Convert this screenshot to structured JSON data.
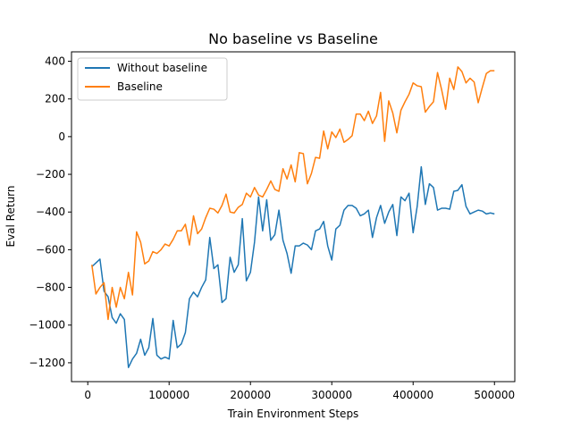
{
  "chart_data": {
    "type": "line",
    "title": "No baseline vs Baseline",
    "xlabel": "Train Environment Steps",
    "ylabel": "Eval Return",
    "xlim": [
      -20000,
      525000
    ],
    "ylim": [
      -1300,
      450
    ],
    "xticks": [
      0,
      100000,
      200000,
      300000,
      400000,
      500000
    ],
    "xtick_labels": [
      "0",
      "100000",
      "200000",
      "300000",
      "400000",
      "500000"
    ],
    "yticks": [
      -1200,
      -1000,
      -800,
      -600,
      -400,
      -200,
      0,
      200,
      400
    ],
    "ytick_labels": [
      "−1200",
      "−1000",
      "−800",
      "−600",
      "−400",
      "−200",
      "0",
      "200",
      "400"
    ],
    "grid": false,
    "legend": "top-left",
    "series": [
      {
        "name": "Without baseline",
        "color": "#1f77b4",
        "x": [
          5000,
          10000,
          15000,
          20000,
          25000,
          30000,
          35000,
          40000,
          45000,
          50000,
          55000,
          60000,
          65000,
          70000,
          75000,
          80000,
          85000,
          90000,
          95000,
          100000,
          105000,
          110000,
          115000,
          120000,
          125000,
          130000,
          135000,
          140000,
          145000,
          150000,
          155000,
          160000,
          165000,
          170000,
          175000,
          180000,
          185000,
          190000,
          195000,
          200000,
          205000,
          210000,
          215000,
          220000,
          225000,
          230000,
          235000,
          240000,
          245000,
          250000,
          255000,
          260000,
          265000,
          270000,
          275000,
          280000,
          285000,
          290000,
          295000,
          300000,
          305000,
          310000,
          315000,
          320000,
          325000,
          330000,
          335000,
          340000,
          345000,
          350000,
          355000,
          360000,
          365000,
          370000,
          375000,
          380000,
          385000,
          390000,
          395000,
          400000,
          405000,
          410000,
          415000,
          420000,
          425000,
          430000,
          435000,
          440000,
          445000,
          450000,
          455000,
          460000,
          465000,
          470000,
          475000,
          480000,
          485000,
          490000,
          495000,
          500000
        ],
        "y": [
          -690,
          -670,
          -650,
          -820,
          -850,
          -960,
          -990,
          -940,
          -970,
          -1225,
          -1180,
          -1150,
          -1075,
          -1160,
          -1120,
          -965,
          -1160,
          -1180,
          -1170,
          -1180,
          -975,
          -1120,
          -1100,
          -1040,
          -860,
          -825,
          -850,
          -800,
          -760,
          -535,
          -700,
          -680,
          -880,
          -860,
          -640,
          -720,
          -680,
          -435,
          -765,
          -720,
          -560,
          -320,
          -500,
          -335,
          -550,
          -520,
          -390,
          -550,
          -620,
          -725,
          -580,
          -580,
          -565,
          -575,
          -600,
          -500,
          -490,
          -450,
          -580,
          -655,
          -490,
          -470,
          -390,
          -365,
          -365,
          -380,
          -420,
          -410,
          -390,
          -535,
          -430,
          -365,
          -460,
          -400,
          -360,
          -525,
          -320,
          -340,
          -300,
          -510,
          -370,
          -160,
          -360,
          -250,
          -270,
          -390,
          -380,
          -380,
          -385,
          -290,
          -285,
          -255,
          -370,
          -410,
          -400,
          -390,
          -395,
          -410,
          -405,
          -410
        ]
      },
      {
        "name": "Baseline",
        "color": "#ff7f0e",
        "x": [
          5000,
          10000,
          15000,
          20000,
          25000,
          30000,
          35000,
          40000,
          45000,
          50000,
          55000,
          60000,
          65000,
          70000,
          75000,
          80000,
          85000,
          90000,
          95000,
          100000,
          105000,
          110000,
          115000,
          120000,
          125000,
          130000,
          135000,
          140000,
          145000,
          150000,
          155000,
          160000,
          165000,
          170000,
          175000,
          180000,
          185000,
          190000,
          195000,
          200000,
          205000,
          210000,
          215000,
          220000,
          225000,
          230000,
          235000,
          240000,
          245000,
          250000,
          255000,
          260000,
          265000,
          270000,
          275000,
          280000,
          285000,
          290000,
          295000,
          300000,
          305000,
          310000,
          315000,
          320000,
          325000,
          330000,
          335000,
          340000,
          345000,
          350000,
          355000,
          360000,
          365000,
          370000,
          375000,
          380000,
          385000,
          390000,
          395000,
          400000,
          405000,
          410000,
          415000,
          420000,
          425000,
          430000,
          435000,
          440000,
          445000,
          450000,
          455000,
          460000,
          465000,
          470000,
          475000,
          480000,
          485000,
          490000,
          495000,
          500000
        ],
        "y": [
          -680,
          -835,
          -800,
          -775,
          -970,
          -800,
          -905,
          -800,
          -860,
          -720,
          -840,
          -505,
          -560,
          -675,
          -660,
          -610,
          -620,
          -600,
          -570,
          -580,
          -545,
          -500,
          -500,
          -465,
          -575,
          -420,
          -515,
          -490,
          -430,
          -380,
          -385,
          -405,
          -365,
          -305,
          -400,
          -405,
          -375,
          -360,
          -300,
          -320,
          -270,
          -310,
          -320,
          -280,
          -235,
          -280,
          -290,
          -170,
          -225,
          -150,
          -240,
          -85,
          -90,
          -250,
          -195,
          -110,
          -115,
          30,
          -65,
          25,
          -5,
          40,
          -30,
          -15,
          5,
          120,
          120,
          85,
          135,
          70,
          110,
          235,
          -25,
          190,
          125,
          20,
          140,
          185,
          225,
          285,
          270,
          265,
          130,
          160,
          185,
          340,
          250,
          145,
          310,
          250,
          370,
          345,
          285,
          310,
          290,
          180,
          260,
          335,
          350,
          350
        ]
      }
    ]
  }
}
